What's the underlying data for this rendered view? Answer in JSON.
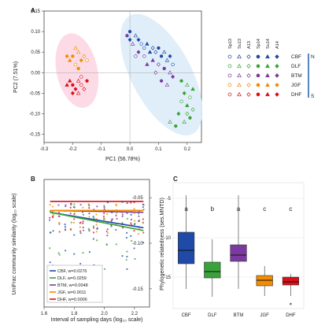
{
  "panels": {
    "a": {
      "label": "A",
      "xlabel": "PC1 (56.78%)",
      "ylabel": "PC2 (7.51%)",
      "xticks": [
        "-0.3",
        "-0.2",
        "-0.1",
        "0.0",
        "0.1",
        "0.2"
      ],
      "yticks": [
        "0.15",
        "0.10",
        "0.05",
        "0.00",
        "-0.05",
        "-0.10",
        "-0.15"
      ],
      "legend_columns": [
        "Sp13",
        "Su13",
        "A13",
        "Sp14",
        "Su14",
        "A14"
      ],
      "legend_rows": [
        "CBF",
        "DLF",
        "BTM",
        "JGF",
        "DHF"
      ],
      "gradient_top": "N",
      "gradient_bottom": "S"
    },
    "b": {
      "label": "B",
      "xlabel": "Interval of sampling days (log₁₀ scale)",
      "ylabel": "UniFrac community similarity (log₁₀ scale)",
      "xticks": [
        "1.6",
        "1.8",
        "2.0",
        "2.2"
      ],
      "yticks": [
        "-0.05",
        "-0.10",
        "-0.15"
      ],
      "legend": [
        {
          "name": "CBF, w=0.0276"
        },
        {
          "name": "DLF, w=0.0259"
        },
        {
          "name": "BTM, w=0.0048"
        },
        {
          "name": "JGF, w=0.0011"
        },
        {
          "name": "DHF, w=0.0006"
        }
      ]
    },
    "c": {
      "label": "C",
      "ylabel": "Phylogenetic relatedness (ses.MNTD)",
      "yticks": [
        "-5",
        "-10",
        "-15"
      ]
    }
  },
  "colors": {
    "CBF": "#1f4aa8",
    "DLF": "#3aa23a",
    "BTM": "#7a3aa0",
    "JGF": "#f28c00",
    "DHF": "#d8101a",
    "ellipse_pink": "#fbd3e2",
    "ellipse_blue": "#dcecf8"
  },
  "chart_data": [
    {
      "type": "scatter",
      "title": "",
      "xlabel": "PC1 (56.78%)",
      "ylabel": "PC2 (7.51%)",
      "xlim": [
        -0.3,
        0.25
      ],
      "ylim": [
        -0.17,
        0.15
      ],
      "groups": [
        "CBF",
        "DLF",
        "BTM",
        "JGF",
        "DHF"
      ],
      "seasons": [
        "Sp13",
        "Su13",
        "A13",
        "Sp14",
        "Su14",
        "A14"
      ],
      "series": [
        {
          "name": "CBF",
          "points": [
            [
              0.0,
              0.1
            ],
            [
              0.02,
              0.09
            ],
            [
              0.03,
              0.08
            ],
            [
              0.05,
              0.06
            ],
            [
              0.07,
              0.05
            ],
            [
              0.09,
              0.05
            ],
            [
              0.11,
              0.04
            ],
            [
              0.13,
              0.03
            ],
            [
              0.0,
              0.08
            ],
            [
              0.04,
              0.07
            ],
            [
              0.06,
              0.07
            ],
            [
              0.08,
              0.06
            ],
            [
              0.1,
              0.06
            ],
            [
              0.12,
              0.05
            ],
            [
              0.14,
              0.04
            ],
            [
              0.15,
              0.02
            ]
          ]
        },
        {
          "name": "DLF",
          "points": [
            [
              0.18,
              -0.02
            ],
            [
              0.2,
              -0.03
            ],
            [
              0.19,
              -0.05
            ],
            [
              0.21,
              -0.06
            ],
            [
              0.2,
              -0.08
            ],
            [
              0.22,
              -0.09
            ],
            [
              0.21,
              -0.11
            ],
            [
              0.19,
              -0.12
            ],
            [
              0.17,
              -0.1
            ],
            [
              0.18,
              -0.07
            ],
            [
              0.22,
              -0.04
            ],
            [
              0.2,
              -0.1
            ],
            [
              0.16,
              -0.13
            ],
            [
              0.14,
              -0.12
            ]
          ]
        },
        {
          "name": "BTM",
          "points": [
            [
              -0.01,
              0.09
            ],
            [
              0.01,
              0.07
            ],
            [
              0.03,
              0.05
            ],
            [
              0.05,
              0.04
            ],
            [
              0.08,
              0.03
            ],
            [
              0.1,
              0.02
            ],
            [
              0.12,
              0.01
            ],
            [
              0.14,
              0.0
            ],
            [
              0.15,
              -0.01
            ],
            [
              0.02,
              0.04
            ],
            [
              0.06,
              0.02
            ],
            [
              0.09,
              0.0
            ],
            [
              0.11,
              -0.02
            ],
            [
              0.13,
              -0.03
            ]
          ]
        },
        {
          "name": "JGF",
          "points": [
            [
              -0.2,
              0.04
            ],
            [
              -0.18,
              0.05
            ],
            [
              -0.17,
              0.03
            ],
            [
              -0.19,
              0.02
            ],
            [
              -0.21,
              0.03
            ],
            [
              -0.16,
              0.04
            ],
            [
              -0.18,
              0.01
            ],
            [
              -0.19,
              0.06
            ],
            [
              -0.22,
              0.04
            ],
            [
              -0.15,
              0.03
            ]
          ]
        },
        {
          "name": "DHF",
          "points": [
            [
              -0.2,
              -0.03
            ],
            [
              -0.18,
              -0.02
            ],
            [
              -0.19,
              -0.04
            ],
            [
              -0.17,
              -0.03
            ],
            [
              -0.21,
              -0.02
            ],
            [
              -0.16,
              -0.04
            ],
            [
              -0.15,
              -0.02
            ],
            [
              -0.18,
              -0.05
            ],
            [
              -0.2,
              -0.05
            ],
            [
              -0.17,
              -0.01
            ],
            [
              -0.22,
              -0.03
            ]
          ]
        }
      ]
    },
    {
      "type": "line",
      "title": "",
      "xlabel": "Interval of sampling days (log₁₀ scale)",
      "ylabel": "UniFrac community similarity (log₁₀ scale)",
      "xlim": [
        1.6,
        2.3
      ],
      "ylim": [
        -0.17,
        -0.03
      ],
      "series": [
        {
          "name": "CBF, w=0.0276",
          "x": [
            1.64,
            2.26
          ],
          "y": [
            -0.066,
            -0.083
          ]
        },
        {
          "name": "DLF, w=0.0259",
          "x": [
            1.64,
            2.26
          ],
          "y": [
            -0.066,
            -0.086
          ]
        },
        {
          "name": "BTM, w=0.0048",
          "x": [
            1.64,
            2.26
          ],
          "y": [
            -0.064,
            -0.066
          ]
        },
        {
          "name": "JGF, w=0.0011",
          "x": [
            1.64,
            2.26
          ],
          "y": [
            -0.064,
            -0.064
          ]
        },
        {
          "name": "DHF, w=0.0006",
          "x": [
            1.64,
            2.26
          ],
          "y": [
            -0.054,
            -0.054
          ]
        }
      ]
    },
    {
      "type": "box",
      "title": "",
      "ylabel": "Phylogenetic relatedness (ses.MNTD)",
      "ylim": [
        -19,
        -3
      ],
      "categories": [
        "CBF",
        "DLF",
        "BTM",
        "JGF",
        "DHF"
      ],
      "letters": [
        "a",
        "b",
        "a",
        "c",
        "c"
      ],
      "boxes": [
        {
          "min": -16.5,
          "q1": -13.3,
          "median": -11.6,
          "q3": -9.3,
          "max": -4.6
        },
        {
          "min": -17.5,
          "q1": -15.1,
          "median": -14.3,
          "q3": -13.1,
          "max": -10.2
        },
        {
          "min": -16.5,
          "q1": -13.0,
          "median": -12.2,
          "q3": -10.9,
          "max": -4.6
        },
        {
          "min": -17.4,
          "q1": -16.1,
          "median": -15.4,
          "q3": -14.8,
          "max": -13.6
        },
        {
          "min": -17.4,
          "q1": -16.0,
          "median": -15.6,
          "q3": -15.0,
          "max": -14.6
        }
      ],
      "outliers": [
        {
          "cat": "DHF",
          "value": -18.4
        }
      ]
    }
  ]
}
